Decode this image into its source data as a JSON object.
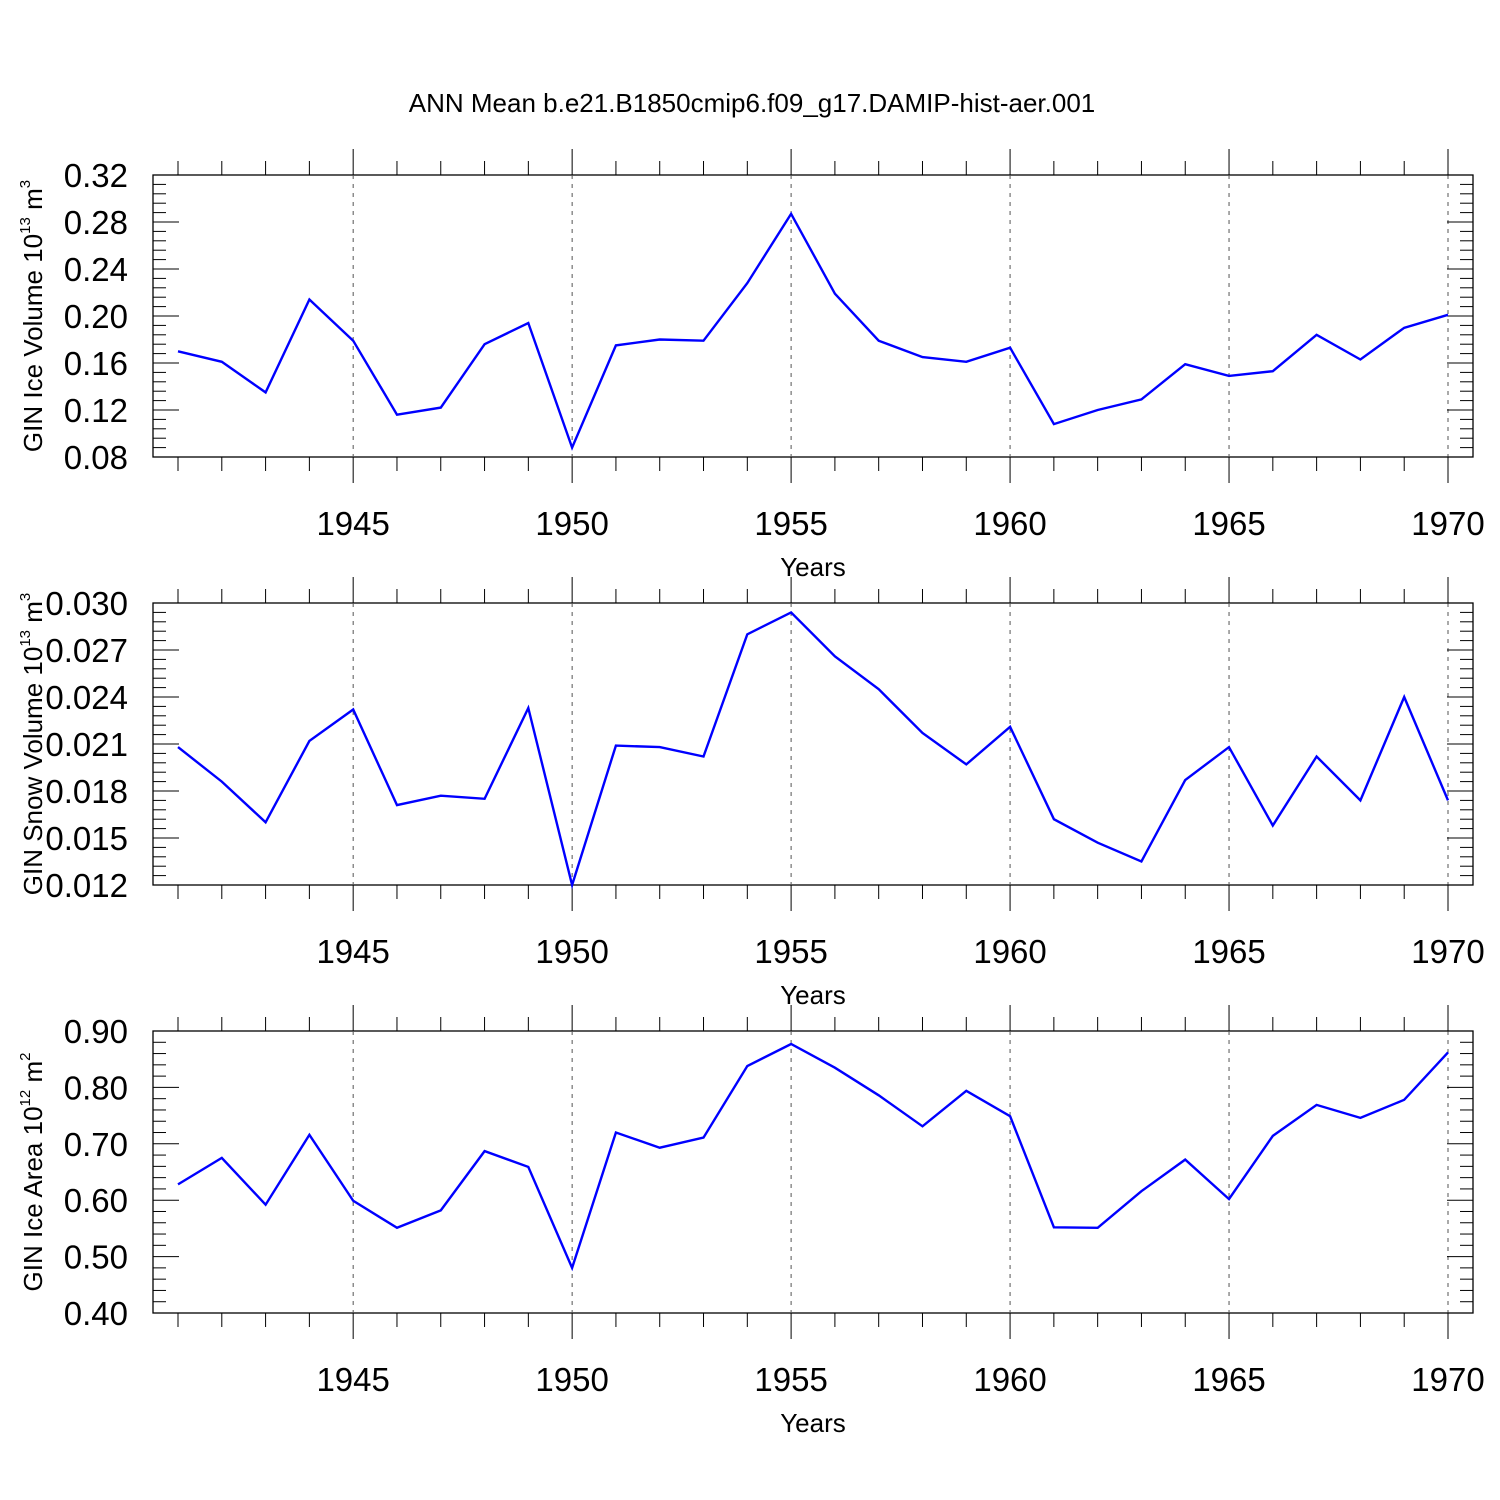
{
  "title": "ANN Mean b.e21.B1850cmip6.f09_g17.DAMIP-hist-aer.001",
  "series_color": "#0000ff",
  "chart_data": [
    {
      "type": "line",
      "ylabel": {
        "base": "GIN Ice Volume 10",
        "exp1": "13",
        "mid": " m",
        "exp2": "3"
      },
      "xlabel": "Years",
      "xlim": [
        1941,
        1970
      ],
      "ylim": [
        0.08,
        0.32
      ],
      "yticks": [
        "0.08",
        "0.12",
        "0.16",
        "0.20",
        "0.24",
        "0.28",
        "0.32"
      ],
      "xticks": [
        "1945",
        "1950",
        "1955",
        "1960",
        "1965",
        "1970"
      ],
      "x": [
        1941,
        1942,
        1943,
        1944,
        1945,
        1946,
        1947,
        1948,
        1949,
        1950,
        1951,
        1952,
        1953,
        1954,
        1955,
        1956,
        1957,
        1958,
        1959,
        1960,
        1961,
        1962,
        1963,
        1964,
        1965,
        1966,
        1967,
        1968,
        1969,
        1970
      ],
      "series": [
        {
          "values": [
            0.17,
            0.161,
            0.135,
            0.214,
            0.179,
            0.116,
            0.122,
            0.176,
            0.194,
            0.088,
            0.175,
            0.18,
            0.179,
            0.228,
            0.287,
            0.219,
            0.179,
            0.165,
            0.161,
            0.173,
            0.108,
            0.12,
            0.129,
            0.159,
            0.149,
            0.153,
            0.184,
            0.163,
            0.19,
            0.201
          ]
        }
      ]
    },
    {
      "type": "line",
      "ylabel": {
        "base": "GIN Snow Volume 10",
        "exp1": "13",
        "mid": " m",
        "exp2": "3"
      },
      "xlabel": "Years",
      "xlim": [
        1941,
        1970
      ],
      "ylim": [
        0.012,
        0.03
      ],
      "yticks": [
        "0.012",
        "0.015",
        "0.018",
        "0.021",
        "0.024",
        "0.027",
        "0.030"
      ],
      "xticks": [
        "1945",
        "1950",
        "1955",
        "1960",
        "1965",
        "1970"
      ],
      "x": [
        1941,
        1942,
        1943,
        1944,
        1945,
        1946,
        1947,
        1948,
        1949,
        1950,
        1951,
        1952,
        1953,
        1954,
        1955,
        1956,
        1957,
        1958,
        1959,
        1960,
        1961,
        1962,
        1963,
        1964,
        1965,
        1966,
        1967,
        1968,
        1969,
        1970
      ],
      "series": [
        {
          "values": [
            0.0208,
            0.0186,
            0.016,
            0.0212,
            0.0232,
            0.0171,
            0.0177,
            0.0175,
            0.0233,
            0.012,
            0.0209,
            0.0208,
            0.0202,
            0.028,
            0.0294,
            0.0266,
            0.0245,
            0.0217,
            0.0197,
            0.0221,
            0.0162,
            0.0147,
            0.0135,
            0.0187,
            0.0208,
            0.0158,
            0.0202,
            0.0174,
            0.024,
            0.0174
          ]
        }
      ]
    },
    {
      "type": "line",
      "ylabel": {
        "base": "GIN Ice Area 10",
        "exp1": "12",
        "mid": " m",
        "exp2": "2"
      },
      "xlabel": "Years",
      "xlim": [
        1941,
        1970
      ],
      "ylim": [
        0.4,
        0.9
      ],
      "yticks": [
        "0.40",
        "0.50",
        "0.60",
        "0.70",
        "0.80",
        "0.90"
      ],
      "xticks": [
        "1945",
        "1950",
        "1955",
        "1960",
        "1965",
        "1970"
      ],
      "x": [
        1941,
        1942,
        1943,
        1944,
        1945,
        1946,
        1947,
        1948,
        1949,
        1950,
        1951,
        1952,
        1953,
        1954,
        1955,
        1956,
        1957,
        1958,
        1959,
        1960,
        1961,
        1962,
        1963,
        1964,
        1965,
        1966,
        1967,
        1968,
        1969,
        1970
      ],
      "series": [
        {
          "values": [
            0.628,
            0.675,
            0.592,
            0.716,
            0.599,
            0.551,
            0.582,
            0.687,
            0.659,
            0.48,
            0.72,
            0.693,
            0.711,
            0.838,
            0.877,
            0.835,
            0.786,
            0.731,
            0.794,
            0.749,
            0.552,
            0.551,
            0.616,
            0.672,
            0.602,
            0.714,
            0.769,
            0.746,
            0.778,
            0.862
          ]
        }
      ]
    }
  ]
}
